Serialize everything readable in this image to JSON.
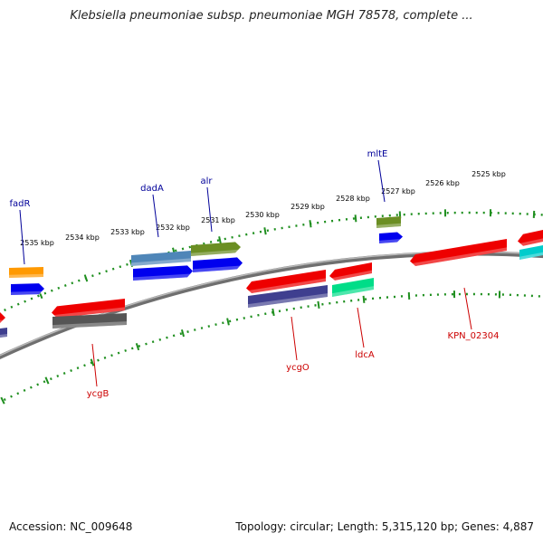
{
  "title": "Klebsiella pneumoniae subsp. pneumoniae MGH 78578, complete ...",
  "footer": {
    "accession": "Accession: NC_009648",
    "topology": "Topology: circular; Length: 5,315,120 bp; Genes: 4,887"
  },
  "colors": {
    "backbone": "#8a8a8a",
    "ticks": "#1f8f1f",
    "label_top": "#000099",
    "label_bottom": "#cc0000"
  },
  "scale_labels": [
    "2535 kbp",
    "2534 kbp",
    "2533 kbp",
    "2532 kbp",
    "2531 kbp",
    "2530 kbp",
    "2529 kbp",
    "2528 kbp",
    "2527 kbp",
    "2526 kbp",
    "2525 kbp"
  ],
  "gene_labels_top": [
    "fadR",
    "dadA",
    "alr",
    "mltE"
  ],
  "gene_labels_bottom": [
    "ycgB",
    "ycgO",
    "ldcA",
    "KPN_02304"
  ]
}
